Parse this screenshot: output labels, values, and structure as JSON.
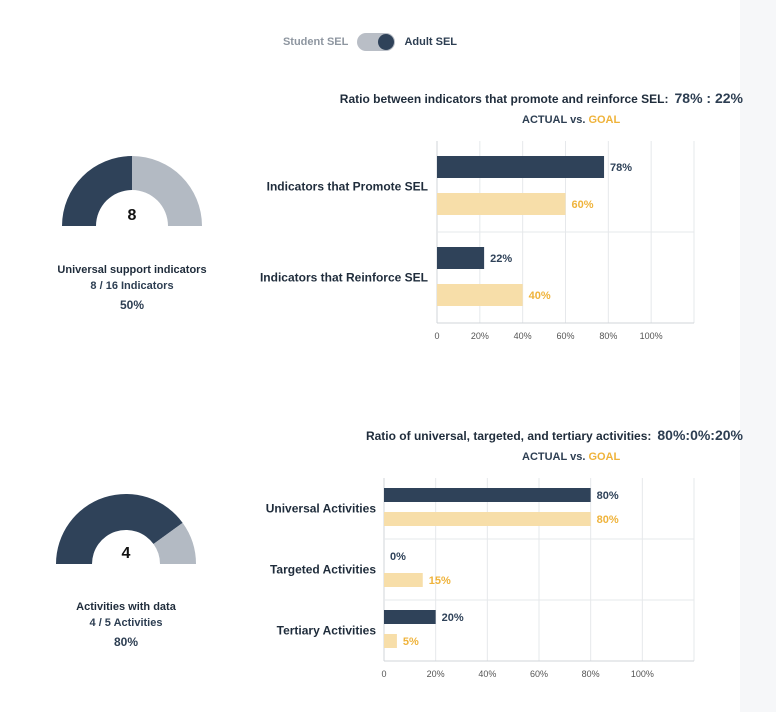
{
  "toggle": {
    "left_label": "Student SEL",
    "right_label": "Adult SEL"
  },
  "legend": {
    "actual": "ACTUAL",
    "vs": "vs.",
    "goal": "GOAL"
  },
  "colors": {
    "actual": "#2f4259",
    "goal": "#f7dea9",
    "gauge_fill": "#2f4259",
    "gauge_rest": "#b3bac3",
    "goal_text": "#efb33b"
  },
  "chart_data": [
    {
      "type": "bar",
      "title": "Ratio between indicators that promote and reinforce SEL:",
      "ratio": "78% : 22%",
      "categories": [
        "Indicators that Promote SEL",
        "Indicators that Reinforce SEL"
      ],
      "series": [
        {
          "name": "ACTUAL",
          "values": [
            78,
            22
          ],
          "labels": [
            "78%",
            "22%"
          ]
        },
        {
          "name": "GOAL",
          "values": [
            60,
            40
          ],
          "labels": [
            "60%",
            "40%"
          ]
        }
      ],
      "ticks": [
        "0",
        "20%",
        "40%",
        "60%",
        "80%",
        "100%"
      ],
      "xlim": [
        0,
        120
      ],
      "orientation": "horizontal"
    },
    {
      "type": "bar",
      "title": "Ratio of universal, targeted, and tertiary activities:",
      "ratio": "80%:0%:20%",
      "categories": [
        "Universal Activities",
        "Targeted Activities",
        "Tertiary Activities"
      ],
      "series": [
        {
          "name": "ACTUAL",
          "values": [
            80,
            0,
            20
          ],
          "labels": [
            "80%",
            "0%",
            "20%"
          ]
        },
        {
          "name": "GOAL",
          "values": [
            80,
            15,
            5
          ],
          "labels": [
            "80%",
            "15%",
            "5%"
          ]
        }
      ],
      "ticks": [
        "0",
        "20%",
        "40%",
        "60%",
        "80%",
        "100%"
      ],
      "xlim": [
        0,
        120
      ],
      "orientation": "horizontal"
    }
  ],
  "gauges": [
    {
      "value": 8,
      "max": 16,
      "center": "8",
      "label": "Universal support indicators",
      "sub": "8 / 16 Indicators",
      "pct": "50%"
    },
    {
      "value": 4,
      "max": 5,
      "center": "4",
      "label": "Activities with data",
      "sub": "4 / 5 Activities",
      "pct": "80%"
    }
  ]
}
